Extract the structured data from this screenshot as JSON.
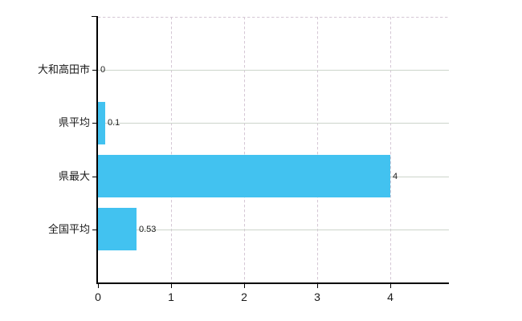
{
  "chart_data": {
    "type": "bar",
    "orientation": "horizontal",
    "title": "",
    "categories": [
      "大和高田市",
      "県平均",
      "県最大",
      "全国平均"
    ],
    "values": [
      0,
      0.1,
      4,
      0.53
    ],
    "data_labels": [
      "0",
      "0.1",
      "4",
      "0.53"
    ],
    "x_tick_labels": [
      "0",
      "1",
      "2",
      "3",
      "4"
    ],
    "x_tick_values": [
      0,
      1,
      2,
      3,
      4
    ],
    "xlim": [
      0,
      4.8
    ],
    "grid": true,
    "legend_position": "none",
    "colors": {
      "bar": "#42C2F0",
      "axis": "#000000",
      "horizontal_grid": "#ccd5cb",
      "vertical_grid": "#d5c7d5",
      "text": "#1a1a1a",
      "background": "#ffffff"
    }
  }
}
